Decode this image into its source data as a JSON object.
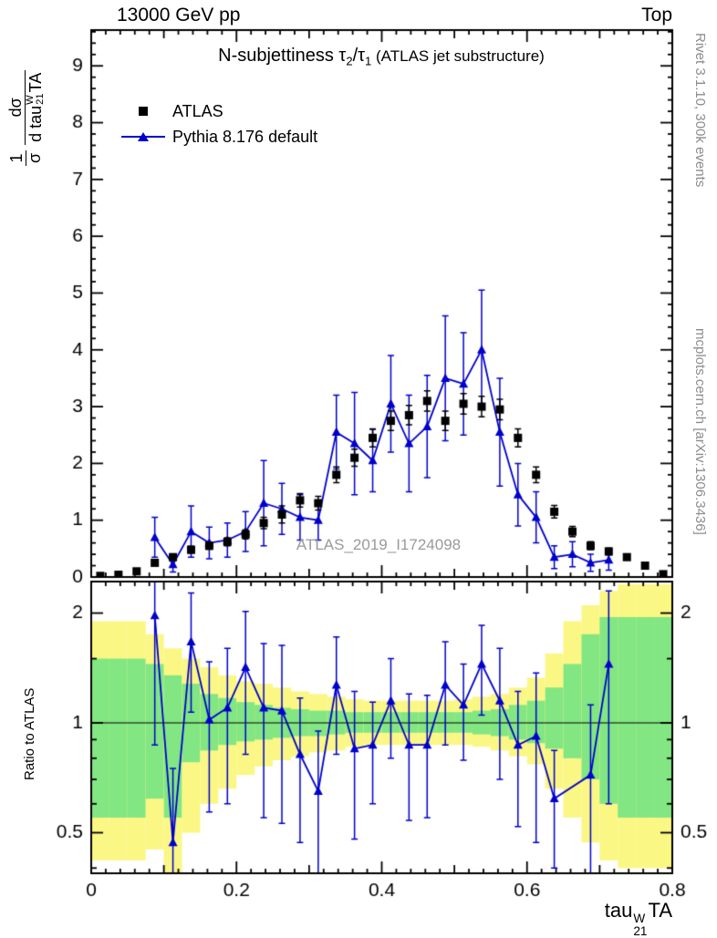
{
  "header": {
    "left": "13000 GeV pp",
    "right": "Top"
  },
  "side_notes": {
    "top_right": "Rivet 3.1.10,  300k events",
    "bottom_right": "mcplots.cern.ch [arXiv:1306.3436]"
  },
  "watermark": "ATLAS_2019_I1724098",
  "title_segments": [
    {
      "t": "N-subjettiness "
    },
    {
      "t": "τ"
    },
    {
      "sub": "2"
    },
    {
      "t": "/τ"
    },
    {
      "sub": "1"
    },
    {
      "small": " (ATLAS jet substructure)"
    }
  ],
  "legend": {
    "atlas_label": "ATLAS",
    "pythia_label": "Pythia 8.176 default"
  },
  "axis_labels": {
    "ratio": "Ratio to ATLAS",
    "y_num1": "1",
    "y_den1": "σ",
    "y_num2": "dσ",
    "y_den2_base": "d tau",
    "x_base": "tau",
    "tau_sup": "W",
    "tau_sub": "21",
    "tau_suffix": "TA"
  },
  "colors": {
    "blue": "#0000cd",
    "band_yellow": "#fbf784",
    "band_green": "#82e682",
    "gray_text": "#8c8c8c",
    "frame_black": "#000000"
  },
  "chart_data": {
    "type": "line",
    "title": "N-subjettiness τ2/τ1 (ATLAS jet substructure)",
    "xlabel": "tau21^WTA",
    "ylabel": "1/σ dσ/d tau21^WTA",
    "ratio_ylabel": "Ratio to ATLAS",
    "x_range": [
      0,
      0.8
    ],
    "bin_width": 0.025,
    "x_ticks": {
      "major": [
        0,
        0.2,
        0.4,
        0.6,
        0.8
      ],
      "labels": [
        "0",
        "0.2",
        "0.4",
        "0.6",
        "0.8"
      ],
      "mid_step": 0.1,
      "minor_step": 0.02
    },
    "top_panel": {
      "y_range": [
        0,
        9.63
      ],
      "y_ticks": [
        0,
        1,
        2,
        3,
        4,
        5,
        6,
        7,
        8,
        9
      ],
      "atlas": {
        "label": "ATLAS",
        "y": [
          0.02,
          0.04,
          0.1,
          0.25,
          0.35,
          0.48,
          0.55,
          0.62,
          0.75,
          0.95,
          1.1,
          1.35,
          1.3,
          1.8,
          2.1,
          2.45,
          2.75,
          2.85,
          3.1,
          2.75,
          3.05,
          3.0,
          2.95,
          2.45,
          1.8,
          1.15,
          0.8,
          0.55,
          0.45,
          0.35,
          0.2,
          0.05
        ],
        "yerr": [
          0.01,
          0.01,
          0.02,
          0.04,
          0.05,
          0.06,
          0.06,
          0.07,
          0.08,
          0.1,
          0.15,
          0.12,
          0.12,
          0.14,
          0.15,
          0.16,
          0.17,
          0.17,
          0.18,
          0.17,
          0.18,
          0.18,
          0.18,
          0.16,
          0.14,
          0.11,
          0.09,
          0.07,
          0.06,
          0.05,
          0.04,
          0.02
        ]
      },
      "pythia": {
        "label": "Pythia 8.176 default",
        "y": [
          null,
          null,
          null,
          0.7,
          0.22,
          0.8,
          0.6,
          0.65,
          0.8,
          1.3,
          1.2,
          1.05,
          1.0,
          2.55,
          2.35,
          2.05,
          3.05,
          2.35,
          2.65,
          3.5,
          3.4,
          4.0,
          2.55,
          1.45,
          1.05,
          0.35,
          0.4,
          0.25,
          0.3,
          null,
          null,
          null
        ],
        "yerr": [
          null,
          null,
          null,
          0.35,
          0.13,
          0.45,
          0.28,
          0.3,
          0.35,
          0.75,
          0.45,
          0.4,
          0.35,
          0.65,
          0.9,
          0.55,
          0.85,
          0.85,
          0.9,
          1.1,
          0.9,
          1.05,
          0.95,
          0.55,
          0.45,
          0.2,
          0.22,
          0.15,
          0.18,
          null,
          null,
          null
        ]
      }
    },
    "ratio_panel": {
      "y_scale": "log",
      "y_range": [
        0.387,
        2.44
      ],
      "y_ticks": {
        "major": [
          0.5,
          1,
          2
        ],
        "labels": [
          "0.5",
          "1",
          "2"
        ],
        "minor": [
          0.4,
          0.6,
          0.7,
          0.8,
          0.9,
          1.5
        ]
      },
      "reference_line": 1,
      "ratio": {
        "y": [
          null,
          null,
          null,
          1.97,
          0.47,
          1.67,
          1.02,
          1.1,
          1.42,
          1.1,
          1.08,
          0.82,
          0.65,
          1.27,
          0.85,
          0.87,
          1.15,
          0.87,
          0.87,
          1.27,
          1.12,
          1.45,
          1.15,
          0.87,
          0.92,
          0.62,
          null,
          0.72,
          1.45,
          null,
          null,
          null
        ],
        "yerr": [
          null,
          null,
          null,
          1.1,
          0.28,
          0.6,
          0.45,
          0.5,
          0.6,
          0.55,
          0.55,
          0.35,
          0.3,
          0.45,
          0.37,
          0.27,
          0.35,
          0.33,
          0.32,
          0.4,
          0.33,
          0.4,
          0.45,
          0.35,
          0.45,
          0.22,
          null,
          0.4,
          0.85,
          null,
          null,
          null
        ]
      },
      "band_yellow": {
        "lo": [
          0.42,
          0.42,
          0.42,
          0.45,
          0.3,
          0.5,
          0.6,
          0.66,
          0.72,
          0.76,
          0.79,
          0.81,
          0.83,
          0.84,
          0.86,
          0.87,
          0.87,
          0.87,
          0.87,
          0.87,
          0.87,
          0.86,
          0.84,
          0.81,
          0.77,
          0.66,
          0.55,
          0.47,
          0.42,
          0.4,
          0.4,
          0.4
        ],
        "hi": [
          1.9,
          1.9,
          1.9,
          1.75,
          1.6,
          1.5,
          1.42,
          1.35,
          1.3,
          1.28,
          1.25,
          1.22,
          1.2,
          1.18,
          1.16,
          1.15,
          1.15,
          1.15,
          1.15,
          1.15,
          1.16,
          1.18,
          1.2,
          1.25,
          1.33,
          1.55,
          1.9,
          2.1,
          2.3,
          2.4,
          2.4,
          2.4
        ]
      },
      "band_green": {
        "lo": [
          0.55,
          0.55,
          0.55,
          0.62,
          0.55,
          0.78,
          0.84,
          0.87,
          0.89,
          0.9,
          0.91,
          0.92,
          0.92,
          0.93,
          0.94,
          0.94,
          0.94,
          0.94,
          0.94,
          0.94,
          0.94,
          0.93,
          0.92,
          0.9,
          0.88,
          0.85,
          0.8,
          0.7,
          0.6,
          0.55,
          0.55,
          0.55
        ],
        "hi": [
          1.5,
          1.5,
          1.5,
          1.45,
          1.35,
          1.28,
          1.2,
          1.17,
          1.14,
          1.12,
          1.1,
          1.09,
          1.08,
          1.08,
          1.07,
          1.07,
          1.07,
          1.07,
          1.07,
          1.07,
          1.07,
          1.08,
          1.09,
          1.12,
          1.15,
          1.25,
          1.45,
          1.75,
          1.95,
          1.95,
          1.95,
          1.95
        ]
      }
    }
  }
}
